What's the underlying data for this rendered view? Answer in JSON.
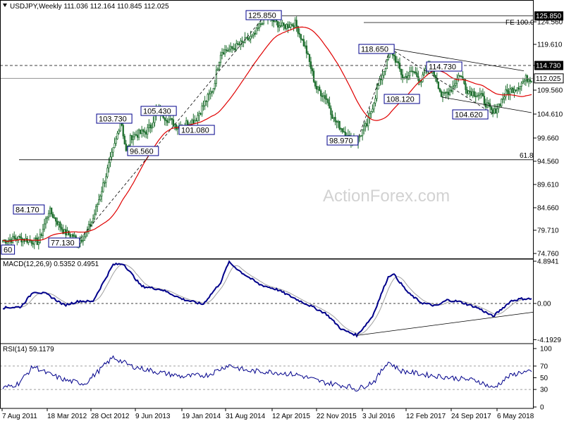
{
  "chart_data": [
    {
      "type": "candlestick",
      "title": "USDJPY,Weekly",
      "ohlc_readout": "111.036 112.164 110.845 112.025",
      "last_price": "112.025",
      "watermark": "ActionForex.com",
      "y_ticks": [
        "124.560",
        "119.610",
        "114.730",
        "109.560",
        "104.610",
        "99.660",
        "94.560",
        "89.610",
        "84.660",
        "79.710",
        "74.760"
      ],
      "ylim": [
        74.76,
        127.8
      ],
      "x_tick_labels": [
        "7 Aug 2011",
        "18 Mar 2012",
        "28 Oct 2012",
        "9 Jun 2013",
        "19 Jan 2014",
        "31 Aug 2014",
        "12 Apr 2015",
        "22 Nov 2015",
        "3 Jul 2016",
        "12 Feb 2017",
        "24 Sep 2017",
        "6 May 2018"
      ],
      "horizontal_levels": [
        {
          "value": 125.85,
          "label": "125.850",
          "style": "solid"
        },
        {
          "value": 124.4,
          "label": "FE 100.0",
          "style": "solid"
        },
        {
          "value": 114.73,
          "label": "114.730",
          "style": "dashed"
        },
        {
          "value": 112.025,
          "label": "112.025",
          "style": "solid"
        },
        {
          "value": 94.9,
          "label": "61.8",
          "style": "solid"
        }
      ],
      "annotations": [
        "125.850",
        "118.650",
        "114.730",
        "108.120",
        "104.620",
        "103.730",
        "105.430",
        "101.080",
        "96.560",
        "98.970",
        "84.170",
        "77.130",
        "60"
      ],
      "moving_average_color": "#e00000",
      "candle_color": "#1f6f2f",
      "key_points": [
        {
          "x": "Aug 2011",
          "y": 76.8
        },
        {
          "x": "Apr 2012",
          "y": 84.17
        },
        {
          "x": "Aug 2012",
          "y": 77.13
        },
        {
          "x": "May 2013",
          "y": 103.73
        },
        {
          "x": "Jun 2013",
          "y": 96.56
        },
        {
          "x": "Jul 2013",
          "y": 101.08
        },
        {
          "x": "Dec 2013",
          "y": 105.43
        },
        {
          "x": "Jun 2015",
          "y": 125.85
        },
        {
          "x": "Jun 2016",
          "y": 98.97
        },
        {
          "x": "Dec 2016",
          "y": 118.65
        },
        {
          "x": "Mar 2017",
          "y": 114.73
        },
        {
          "x": "Apr 2017",
          "y": 108.12
        },
        {
          "x": "Mar 2018",
          "y": 104.62
        },
        {
          "x": "Jun 2018",
          "y": 112.025
        }
      ]
    },
    {
      "type": "line",
      "title": "MACD(12,26,9) 0.5352 0.4951",
      "y_ticks": [
        "4.8941",
        "0.00",
        "-4.1929"
      ],
      "ylim": [
        -4.1929,
        4.8941
      ],
      "series": [
        {
          "name": "MACD",
          "color": "#00008b"
        },
        {
          "name": "Signal",
          "color": "#a0a0a0"
        }
      ],
      "key_points": [
        {
          "x": "Aug 2011",
          "y": -0.5
        },
        {
          "x": "Jan 2012",
          "y": 1.2
        },
        {
          "x": "Sep 2012",
          "y": 0.2
        },
        {
          "x": "Feb 2013",
          "y": 4.6
        },
        {
          "x": "Mar 2014",
          "y": -0.1
        },
        {
          "x": "Nov 2014",
          "y": 4.8
        },
        {
          "x": "Jan 2016",
          "y": -0.3
        },
        {
          "x": "Jul 2016",
          "y": -3.7
        },
        {
          "x": "Dec 2016",
          "y": 3.5
        },
        {
          "x": "Feb 2018",
          "y": -1.5
        },
        {
          "x": "Jun 2018",
          "y": 0.5352
        }
      ]
    },
    {
      "type": "line",
      "title": "RSI(14) 59.1179",
      "y_ticks": [
        "100",
        "70",
        "50",
        "30",
        "0"
      ],
      "ylim": [
        0,
        100
      ],
      "series": [
        {
          "name": "RSI",
          "color": "#00008b"
        }
      ],
      "key_points": [
        {
          "x": "Aug 2011",
          "y": 32
        },
        {
          "x": "Jan 2012",
          "y": 70
        },
        {
          "x": "Jan 2013",
          "y": 85
        },
        {
          "x": "Jul 2016",
          "y": 30
        },
        {
          "x": "Dec 2016",
          "y": 78
        },
        {
          "x": "Feb 2018",
          "y": 32
        },
        {
          "x": "Jun 2018",
          "y": 59.1179
        }
      ]
    }
  ]
}
